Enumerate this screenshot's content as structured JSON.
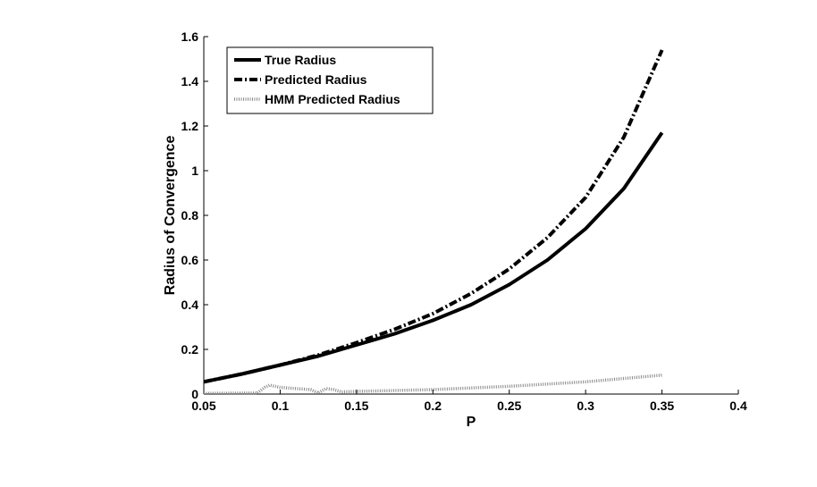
{
  "chart_data": {
    "type": "line",
    "xlabel": "P",
    "ylabel": "Radius of Convergence",
    "xlim": [
      0.05,
      0.4
    ],
    "ylim": [
      0,
      1.6
    ],
    "xticks": [
      "0.05",
      "0.1",
      "0.15",
      "0.2",
      "0.25",
      "0.3",
      "0.35",
      "0.4"
    ],
    "yticks": [
      "0",
      "0.2",
      "0.4",
      "0.6",
      "0.8",
      "1",
      "1.2",
      "1.4",
      "1.6"
    ],
    "grid": false,
    "legend_position": "top-left",
    "series": [
      {
        "name": "True Radius",
        "style": "solid",
        "color": "#000000",
        "x": [
          0.05,
          0.075,
          0.1,
          0.125,
          0.15,
          0.175,
          0.2,
          0.225,
          0.25,
          0.275,
          0.3,
          0.325,
          0.35
        ],
        "y": [
          0.055,
          0.09,
          0.13,
          0.17,
          0.22,
          0.27,
          0.33,
          0.4,
          0.49,
          0.6,
          0.74,
          0.92,
          1.17
        ]
      },
      {
        "name": "Predicted Radius",
        "style": "dashdot",
        "color": "#000000",
        "x": [
          0.05,
          0.075,
          0.1,
          0.125,
          0.15,
          0.175,
          0.2,
          0.225,
          0.25,
          0.275,
          0.3,
          0.325,
          0.35
        ],
        "y": [
          0.055,
          0.09,
          0.13,
          0.175,
          0.23,
          0.29,
          0.36,
          0.45,
          0.56,
          0.7,
          0.88,
          1.15,
          1.54
        ]
      },
      {
        "name": "HMM Predicted Radius",
        "style": "dotted",
        "color": "#888888",
        "x": [
          0.05,
          0.085,
          0.09,
          0.093,
          0.1,
          0.11,
          0.12,
          0.125,
          0.13,
          0.135,
          0.14,
          0.15,
          0.2,
          0.25,
          0.3,
          0.35
        ],
        "y": [
          0.003,
          0.005,
          0.03,
          0.04,
          0.03,
          0.025,
          0.02,
          0.005,
          0.025,
          0.02,
          0.01,
          0.012,
          0.02,
          0.035,
          0.055,
          0.085
        ]
      }
    ]
  }
}
